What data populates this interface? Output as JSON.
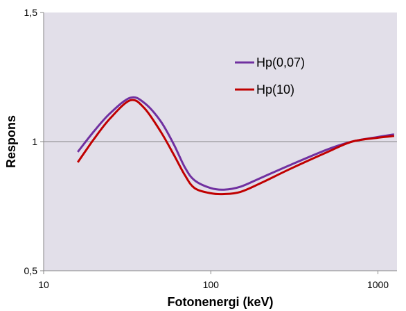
{
  "chart_data": {
    "type": "line",
    "xlabel": "Fotonenergi (keV)",
    "ylabel": "Respons",
    "xscale": "log",
    "xlim": [
      10,
      1300
    ],
    "ylim": [
      0.5,
      1.5
    ],
    "x_ticks": [
      10,
      100,
      1000
    ],
    "x_tick_labels": [
      "10",
      "100",
      "1000"
    ],
    "y_ticks": [
      0.5,
      1,
      1.5
    ],
    "y_tick_labels": [
      "0,5",
      "1",
      "1,5"
    ],
    "grid": "horizontal at 1",
    "legend_position": "top-right",
    "background": "#e2dfe9",
    "series": [
      {
        "name": "Hp(0,07)",
        "color": "#7030a0",
        "x": [
          16,
          20,
          25,
          33,
          40,
          50,
          60,
          70,
          80,
          100,
          120,
          150,
          200,
          300,
          500,
          700,
          1000,
          1250
        ],
        "y": [
          0.96,
          1.04,
          1.11,
          1.17,
          1.15,
          1.08,
          0.99,
          0.9,
          0.85,
          0.82,
          0.814,
          0.825,
          0.86,
          0.91,
          0.97,
          1.0,
          1.018,
          1.028
        ]
      },
      {
        "name": "Hp(10)",
        "color": "#c00000",
        "x": [
          16,
          20,
          25,
          33,
          40,
          50,
          60,
          70,
          80,
          100,
          120,
          150,
          200,
          300,
          500,
          700,
          1000,
          1250
        ],
        "y": [
          0.92,
          1.01,
          1.09,
          1.16,
          1.13,
          1.04,
          0.95,
          0.87,
          0.82,
          0.8,
          0.797,
          0.805,
          0.84,
          0.895,
          0.96,
          1.0,
          1.015,
          1.022
        ]
      }
    ]
  }
}
